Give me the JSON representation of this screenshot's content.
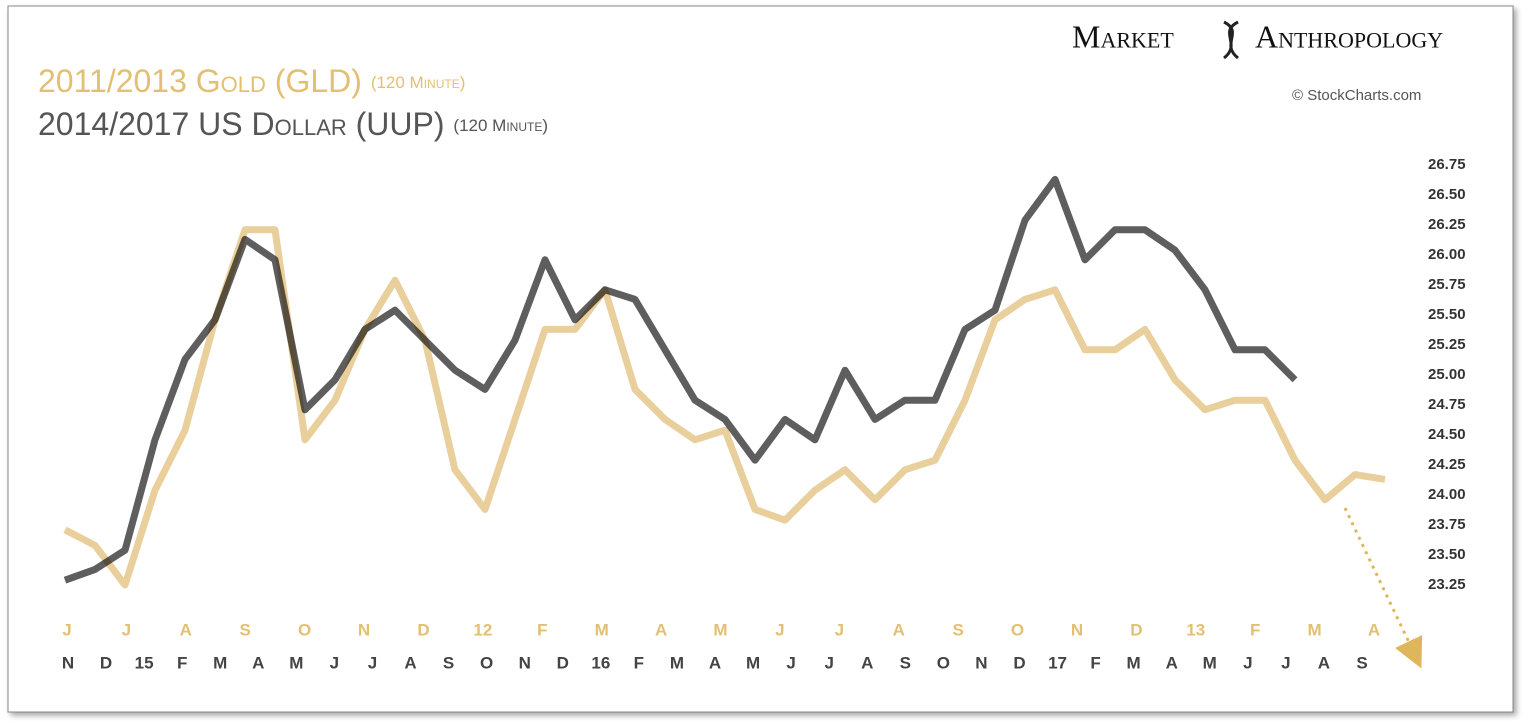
{
  "chart_data": {
    "type": "line",
    "brand": [
      "Market",
      "Anthropology"
    ],
    "source": "© StockCharts.com",
    "titles": [
      {
        "text": "2011/2013 Gold (GLD)",
        "note": "(120 Minute)"
      },
      {
        "text": "2014/2017 US Dollar (UUP)",
        "note": "(120 Minute)"
      }
    ],
    "series": [
      {
        "name": "2011/2013 Gold (GLD)",
        "color": "#e9cf9c",
        "values": [
          23.71,
          23.58,
          23.25,
          24.04,
          24.54,
          25.46,
          26.21,
          26.21,
          24.46,
          24.79,
          25.38,
          25.79,
          25.29,
          24.21,
          23.88,
          24.63,
          25.38,
          25.38,
          25.71,
          24.88,
          24.63,
          24.46,
          24.54,
          23.88,
          23.79,
          24.04,
          24.21,
          23.96,
          24.21,
          24.29,
          24.79,
          25.46,
          25.63,
          25.71,
          25.21,
          25.21,
          25.38,
          24.96,
          24.71,
          24.79,
          24.79,
          24.29,
          23.96,
          24.17,
          24.13
        ]
      },
      {
        "name": "2014/2017 US Dollar (UUP)",
        "color": "#5e5e5e",
        "values": [
          23.29,
          23.38,
          23.54,
          24.46,
          25.13,
          25.46,
          26.13,
          25.96,
          24.71,
          24.96,
          25.38,
          25.54,
          25.29,
          25.04,
          24.88,
          25.29,
          25.96,
          25.46,
          25.71,
          25.63,
          25.21,
          24.79,
          24.63,
          24.29,
          24.63,
          24.46,
          25.04,
          24.63,
          24.79,
          24.79,
          25.38,
          25.54,
          26.29,
          26.63,
          25.96,
          26.21,
          26.21,
          26.04,
          25.71,
          25.21,
          25.21,
          24.96,
          null,
          null,
          null
        ]
      }
    ],
    "x_labels_gold": [
      "J",
      "J",
      "A",
      "S",
      "O",
      "N",
      "D",
      "12",
      "F",
      "M",
      "A",
      "M",
      "J",
      "J",
      "A",
      "S",
      "O",
      "N",
      "D",
      "13",
      "F",
      "M",
      "A"
    ],
    "x_labels_dollar": [
      "N",
      "D",
      "15",
      "F",
      "M",
      "A",
      "M",
      "J",
      "J",
      "A",
      "S",
      "O",
      "N",
      "D",
      "16",
      "F",
      "M",
      "A",
      "M",
      "J",
      "J",
      "A",
      "S",
      "O",
      "N",
      "D",
      "17",
      "F",
      "M",
      "A",
      "M",
      "J",
      "J",
      "A",
      "S"
    ],
    "ylim": [
      23.1,
      26.85
    ],
    "yticks": [
      23.25,
      {
        "value": 23.5,
        "label": "23.50"
      },
      23.75,
      {
        "value": 24,
        "label": "24.00"
      },
      24.25,
      {
        "value": 24.5,
        "label": "24.50"
      },
      24.75,
      {
        "value": 25,
        "label": "25.00"
      },
      25.25,
      {
        "value": 25.5,
        "label": "25.50"
      },
      25.75,
      {
        "value": 26,
        "label": "26.00"
      },
      26.25,
      {
        "value": 26.5,
        "label": "26.50"
      },
      26.75
    ],
    "grid": false
  }
}
